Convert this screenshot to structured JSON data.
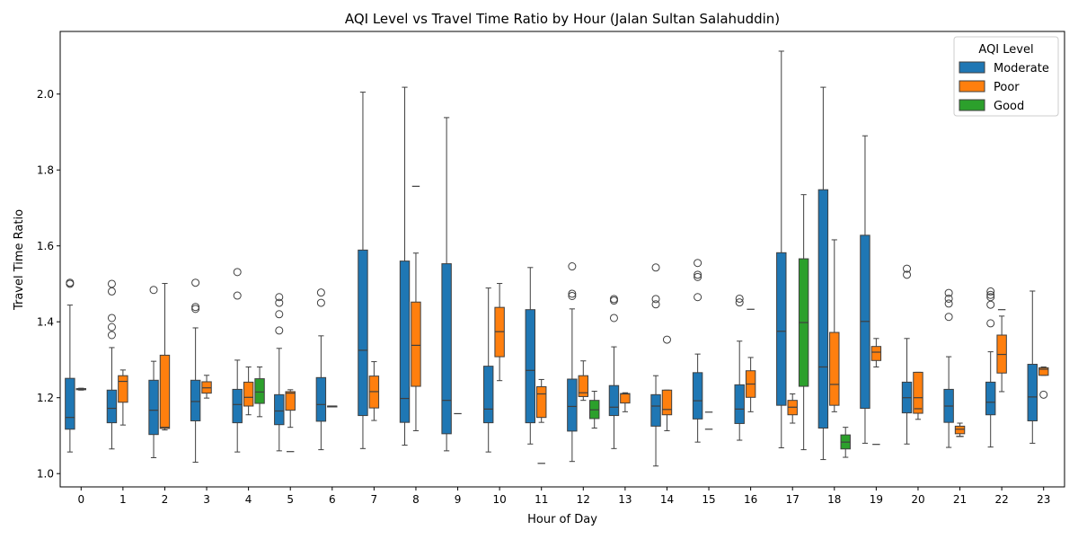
{
  "chart_data": {
    "type": "box",
    "title": "AQI Level vs Travel Time Ratio by Hour (Jalan Sultan Salahuddin)",
    "xlabel": "Hour of Day",
    "ylabel": "Travel Time Ratio",
    "categories": [
      "0",
      "1",
      "2",
      "3",
      "4",
      "5",
      "6",
      "7",
      "8",
      "9",
      "10",
      "11",
      "12",
      "13",
      "14",
      "15",
      "16",
      "17",
      "18",
      "19",
      "20",
      "21",
      "22",
      "23"
    ],
    "ylim": [
      0.965,
      2.165
    ],
    "yticks": [
      1.0,
      1.2,
      1.4,
      1.6,
      1.8,
      2.0
    ],
    "ytick_labels": [
      "1.0",
      "1.2",
      "1.4",
      "1.6",
      "1.8",
      "2.0"
    ],
    "legend": {
      "title": "AQI Level",
      "position": "top-right",
      "entries": [
        {
          "name": "Moderate",
          "color": "#1f77b4"
        },
        {
          "name": "Poor",
          "color": "#ff7f0e"
        },
        {
          "name": "Good",
          "color": "#2ca02c"
        }
      ]
    },
    "series": [
      {
        "name": "Moderate",
        "color": "#1f77b4",
        "boxes": [
          {
            "hour": 0,
            "low": 1.057,
            "q1": 1.117,
            "median": 1.148,
            "q3": 1.251,
            "high": 1.444,
            "outliers": [
              1.5,
              1.503
            ]
          },
          {
            "hour": 1,
            "low": 1.065,
            "q1": 1.134,
            "median": 1.172,
            "q3": 1.22,
            "high": 1.332,
            "outliers": [
              1.365,
              1.386,
              1.41,
              1.48,
              1.5
            ]
          },
          {
            "hour": 2,
            "low": 1.042,
            "q1": 1.103,
            "median": 1.167,
            "q3": 1.246,
            "high": 1.296,
            "outliers": [
              1.484
            ]
          },
          {
            "hour": 3,
            "low": 1.03,
            "q1": 1.139,
            "median": 1.19,
            "q3": 1.246,
            "high": 1.384,
            "outliers": [
              1.434,
              1.439,
              1.503
            ]
          },
          {
            "hour": 4,
            "low": 1.057,
            "q1": 1.134,
            "median": 1.182,
            "q3": 1.222,
            "high": 1.299,
            "outliers": [
              1.469,
              1.531
            ]
          },
          {
            "hour": 5,
            "low": 1.06,
            "q1": 1.129,
            "median": 1.165,
            "q3": 1.208,
            "high": 1.33,
            "outliers": [
              1.377,
              1.42,
              1.45,
              1.465
            ]
          },
          {
            "hour": 6,
            "low": 1.063,
            "q1": 1.138,
            "median": 1.182,
            "q3": 1.253,
            "high": 1.363,
            "outliers": [
              1.45,
              1.477
            ]
          },
          {
            "hour": 7,
            "low": 1.066,
            "q1": 1.153,
            "median": 1.325,
            "q3": 1.589,
            "high": 2.005,
            "outliers": []
          },
          {
            "hour": 8,
            "low": 1.075,
            "q1": 1.135,
            "median": 1.198,
            "q3": 1.56,
            "high": 2.018,
            "outliers": []
          },
          {
            "hour": 9,
            "low": 1.06,
            "q1": 1.105,
            "median": 1.193,
            "q3": 1.553,
            "high": 1.938,
            "outliers": []
          },
          {
            "hour": 10,
            "low": 1.057,
            "q1": 1.134,
            "median": 1.17,
            "q3": 1.283,
            "high": 1.489,
            "outliers": []
          },
          {
            "hour": 11,
            "low": 1.078,
            "q1": 1.134,
            "median": 1.272,
            "q3": 1.432,
            "high": 1.543,
            "outliers": []
          },
          {
            "hour": 12,
            "low": 1.032,
            "q1": 1.112,
            "median": 1.177,
            "q3": 1.249,
            "high": 1.434,
            "outliers": [
              1.468,
              1.474,
              1.546
            ]
          },
          {
            "hour": 13,
            "low": 1.066,
            "q1": 1.153,
            "median": 1.175,
            "q3": 1.232,
            "high": 1.334,
            "outliers": [
              1.41,
              1.456,
              1.46
            ]
          },
          {
            "hour": 14,
            "low": 1.02,
            "q1": 1.125,
            "median": 1.178,
            "q3": 1.208,
            "high": 1.258,
            "outliers": [
              1.446,
              1.46,
              1.543
            ]
          },
          {
            "hour": 15,
            "low": 1.083,
            "q1": 1.144,
            "median": 1.192,
            "q3": 1.266,
            "high": 1.315,
            "outliers": [
              1.465,
              1.518,
              1.524,
              1.555
            ]
          },
          {
            "hour": 16,
            "low": 1.088,
            "q1": 1.132,
            "median": 1.17,
            "q3": 1.234,
            "high": 1.349,
            "outliers": [
              1.451,
              1.461
            ]
          },
          {
            "hour": 17,
            "low": 1.068,
            "q1": 1.18,
            "median": 1.375,
            "q3": 1.582,
            "high": 2.113,
            "outliers": []
          },
          {
            "hour": 18,
            "low": 1.037,
            "q1": 1.12,
            "median": 1.281,
            "q3": 1.748,
            "high": 2.018,
            "outliers": []
          },
          {
            "hour": 19,
            "low": 1.08,
            "q1": 1.172,
            "median": 1.401,
            "q3": 1.628,
            "high": 1.89,
            "outliers": []
          },
          {
            "hour": 20,
            "low": 1.078,
            "q1": 1.16,
            "median": 1.2,
            "q3": 1.241,
            "high": 1.356,
            "outliers": [
              1.524,
              1.54
            ]
          },
          {
            "hour": 21,
            "low": 1.069,
            "q1": 1.135,
            "median": 1.178,
            "q3": 1.222,
            "high": 1.308,
            "outliers": [
              1.413,
              1.448,
              1.461,
              1.476
            ]
          },
          {
            "hour": 22,
            "low": 1.07,
            "q1": 1.155,
            "median": 1.188,
            "q3": 1.241,
            "high": 1.321,
            "outliers": [
              1.396,
              1.445,
              1.465,
              1.471,
              1.48
            ]
          },
          {
            "hour": 23,
            "low": 1.08,
            "q1": 1.139,
            "median": 1.202,
            "q3": 1.288,
            "high": 1.481,
            "outliers": []
          }
        ]
      },
      {
        "name": "Poor",
        "color": "#ff7f0e",
        "boxes": [
          {
            "hour": 0,
            "low": 1.22,
            "q1": 1.221,
            "median": 1.222,
            "q3": 1.224,
            "high": 1.225,
            "outliers": []
          },
          {
            "hour": 1,
            "low": 1.128,
            "q1": 1.188,
            "median": 1.243,
            "q3": 1.258,
            "high": 1.273,
            "outliers": []
          },
          {
            "hour": 2,
            "low": 1.115,
            "q1": 1.119,
            "median": 1.122,
            "q3": 1.312,
            "high": 1.501,
            "outliers": []
          },
          {
            "hour": 3,
            "low": 1.199,
            "q1": 1.212,
            "median": 1.226,
            "q3": 1.242,
            "high": 1.259,
            "outliers": []
          },
          {
            "hour": 4,
            "low": 1.155,
            "q1": 1.178,
            "median": 1.201,
            "q3": 1.241,
            "high": 1.281,
            "outliers": []
          },
          {
            "hour": 5,
            "low": 1.122,
            "q1": 1.167,
            "median": 1.212,
            "q3": 1.216,
            "high": 1.221,
            "outliers": []
          },
          {
            "hour": 6,
            "low": 1.178,
            "q1": 1.178,
            "median": 1.178,
            "q3": 1.178,
            "high": 1.178,
            "outliers": []
          },
          {
            "hour": 7,
            "low": 1.14,
            "q1": 1.173,
            "median": 1.216,
            "q3": 1.257,
            "high": 1.295,
            "outliers": []
          },
          {
            "hour": 8,
            "low": 1.113,
            "q1": 1.23,
            "median": 1.338,
            "q3": 1.452,
            "high": 1.581,
            "outliers": []
          },
          {
            "hour": 10,
            "low": 1.245,
            "q1": 1.308,
            "median": 1.374,
            "q3": 1.438,
            "high": 1.501,
            "outliers": []
          },
          {
            "hour": 11,
            "low": 1.135,
            "q1": 1.148,
            "median": 1.21,
            "q3": 1.229,
            "high": 1.248,
            "outliers": []
          },
          {
            "hour": 12,
            "low": 1.193,
            "q1": 1.203,
            "median": 1.213,
            "q3": 1.258,
            "high": 1.297,
            "outliers": []
          },
          {
            "hour": 13,
            "low": 1.163,
            "q1": 1.186,
            "median": 1.21,
            "q3": 1.211,
            "high": 1.213,
            "outliers": []
          },
          {
            "hour": 14,
            "low": 1.113,
            "q1": 1.155,
            "median": 1.169,
            "q3": 1.22,
            "high": 1.22,
            "outliers": [
              1.353
            ]
          },
          {
            "hour": 16,
            "low": 1.163,
            "q1": 1.201,
            "median": 1.236,
            "q3": 1.271,
            "high": 1.306,
            "outliers": []
          },
          {
            "hour": 17,
            "low": 1.133,
            "q1": 1.155,
            "median": 1.175,
            "q3": 1.193,
            "high": 1.21,
            "outliers": []
          },
          {
            "hour": 18,
            "low": 1.163,
            "q1": 1.18,
            "median": 1.235,
            "q3": 1.372,
            "high": 1.616,
            "outliers": []
          },
          {
            "hour": 19,
            "low": 1.281,
            "q1": 1.298,
            "median": 1.32,
            "q3": 1.335,
            "high": 1.356,
            "outliers": []
          },
          {
            "hour": 20,
            "low": 1.143,
            "q1": 1.159,
            "median": 1.2,
            "q3": 1.267,
            "high": 1.267,
            "outliers": []
          },
          {
            "hour": 21,
            "low": 1.098,
            "q1": 1.105,
            "median": 1.117,
            "q3": 1.125,
            "high": 1.133,
            "outliers": []
          },
          {
            "hour": 22,
            "low": 1.216,
            "q1": 1.265,
            "median": 1.314,
            "q3": 1.365,
            "high": 1.415,
            "outliers": []
          },
          {
            "hour": 23,
            "low": 1.259,
            "q1": 1.259,
            "median": 1.275,
            "q3": 1.279,
            "high": 1.281,
            "outliers": [
              1.208
            ]
          }
        ]
      },
      {
        "name": "Good",
        "color": "#2ca02c",
        "boxes": [
          {
            "hour": 4,
            "low": 1.15,
            "q1": 1.185,
            "median": 1.215,
            "q3": 1.25,
            "high": 1.281,
            "outliers": []
          },
          {
            "hour": 12,
            "low": 1.12,
            "q1": 1.145,
            "median": 1.168,
            "q3": 1.193,
            "high": 1.217,
            "outliers": []
          },
          {
            "hour": 17,
            "low": 1.063,
            "q1": 1.23,
            "median": 1.398,
            "q3": 1.566,
            "high": 1.735,
            "outliers": []
          },
          {
            "hour": 18,
            "low": 1.043,
            "q1": 1.065,
            "median": 1.083,
            "q3": 1.102,
            "high": 1.122,
            "outliers": []
          }
        ]
      }
    ],
    "single_point_markers": [
      {
        "series": "Moderate",
        "hour": 21,
        "value": 1.098
      },
      {
        "series": "Moderate",
        "hour": 22,
        "value": 1.432
      },
      {
        "series": "Moderate",
        "hour": 9,
        "value": 1.158
      },
      {
        "series": "Moderate",
        "hour": 5,
        "value": 1.058
      },
      {
        "series": "Moderate",
        "hour": 8,
        "value": 1.757
      },
      {
        "series": "Moderate",
        "hour": 11,
        "value": 1.027
      },
      {
        "series": "Moderate",
        "hour": 15,
        "value": 1.117
      },
      {
        "series": "Moderate",
        "hour": 19,
        "value": 1.077
      },
      {
        "series": "Moderate",
        "hour": 20,
        "value": 1.171
      },
      {
        "series": "Moderate",
        "hour": 16,
        "value": 1.433
      },
      {
        "series": "Moderate",
        "hour": 15,
        "value": 1.162
      }
    ],
    "grid": false
  }
}
